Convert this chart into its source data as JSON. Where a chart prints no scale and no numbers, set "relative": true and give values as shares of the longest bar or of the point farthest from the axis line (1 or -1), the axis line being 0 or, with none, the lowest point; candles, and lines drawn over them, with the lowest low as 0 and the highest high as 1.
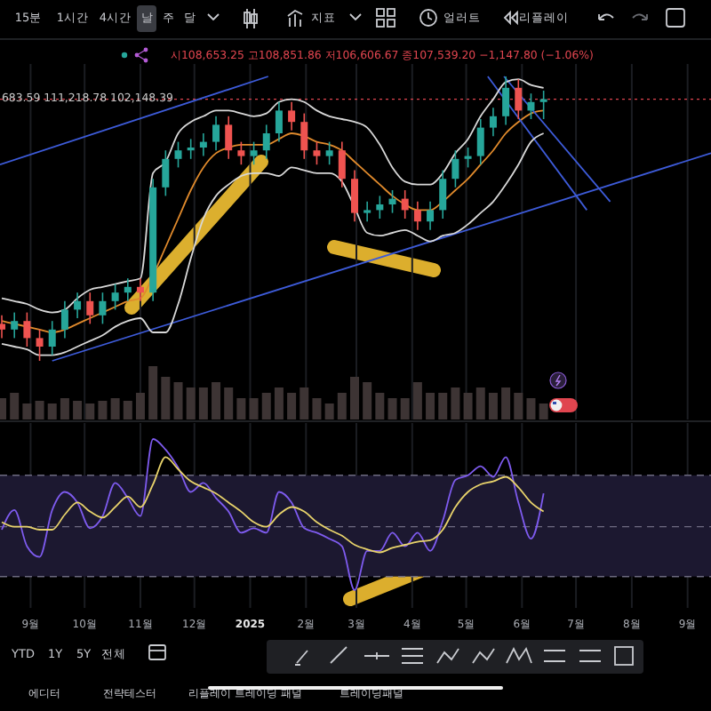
{
  "chart_data": [
    {
      "type": "candlestick",
      "relative": true,
      "tick_labels": false,
      "grid": "x",
      "xlim": [
        "2024-08-15",
        "2025-09-14"
      ],
      "xticks": [
        {
          "value": "2024-09-01",
          "label": null
        },
        {
          "value": "2024-10-01",
          "label": null
        },
        {
          "value": "2024-11-01",
          "label": null
        },
        {
          "value": "2024-12-01",
          "label": null
        },
        {
          "value": "2025-01-01",
          "label": null
        },
        {
          "value": "2025-02-01",
          "label": null
        },
        {
          "value": "2025-03-01",
          "label": null
        },
        {
          "value": "2025-04-01",
          "label": null
        },
        {
          "value": "2025-05-01",
          "label": null
        },
        {
          "value": "2025-06-01",
          "label": null
        },
        {
          "value": "2025-07-01",
          "label": null
        },
        {
          "value": "2025-08-01",
          "label": null
        },
        {
          "value": "2025-09-01",
          "label": null
        }
      ],
      "x": [
        "2024-08-16",
        "2024-08-23",
        "2024-08-30",
        "2024-09-06",
        "2024-09-13",
        "2024-09-20",
        "2024-09-27",
        "2024-10-04",
        "2024-10-11",
        "2024-10-18",
        "2024-10-25",
        "2024-11-01",
        "2024-11-08",
        "2024-11-15",
        "2024-11-22",
        "2024-11-29",
        "2024-12-06",
        "2024-12-13",
        "2024-12-20",
        "2024-12-27",
        "2025-01-03",
        "2025-01-10",
        "2025-01-17",
        "2025-01-24",
        "2025-01-31",
        "2025-02-07",
        "2025-02-14",
        "2025-02-21",
        "2025-02-28",
        "2025-03-07",
        "2025-03-14",
        "2025-03-21",
        "2025-03-28",
        "2025-04-04",
        "2025-04-11",
        "2025-04-18",
        "2025-04-25",
        "2025-05-02",
        "2025-05-09",
        "2025-05-16",
        "2025-05-23",
        "2025-05-30",
        "2025-06-06",
        "2025-06-13"
      ],
      "ohlc": [
        [
          0.13,
          0.16,
          0.08,
          0.11
        ],
        [
          0.11,
          0.17,
          0.08,
          0.14
        ],
        [
          0.14,
          0.17,
          0.05,
          0.08
        ],
        [
          0.08,
          0.11,
          0.0,
          0.05
        ],
        [
          0.05,
          0.14,
          0.02,
          0.11
        ],
        [
          0.11,
          0.21,
          0.08,
          0.18
        ],
        [
          0.18,
          0.24,
          0.15,
          0.21
        ],
        [
          0.21,
          0.24,
          0.13,
          0.16
        ],
        [
          0.16,
          0.24,
          0.13,
          0.21
        ],
        [
          0.21,
          0.27,
          0.18,
          0.24
        ],
        [
          0.24,
          0.29,
          0.21,
          0.26
        ],
        [
          0.26,
          0.29,
          0.21,
          0.24
        ],
        [
          0.24,
          0.64,
          0.21,
          0.61
        ],
        [
          0.61,
          0.74,
          0.58,
          0.71
        ],
        [
          0.71,
          0.77,
          0.68,
          0.74
        ],
        [
          0.74,
          0.78,
          0.71,
          0.75
        ],
        [
          0.75,
          0.8,
          0.72,
          0.77
        ],
        [
          0.77,
          0.86,
          0.74,
          0.83
        ],
        [
          0.83,
          0.86,
          0.71,
          0.74
        ],
        [
          0.74,
          0.77,
          0.69,
          0.72
        ],
        [
          0.72,
          0.77,
          0.69,
          0.74
        ],
        [
          0.74,
          0.83,
          0.71,
          0.8
        ],
        [
          0.8,
          0.91,
          0.77,
          0.88
        ],
        [
          0.88,
          0.91,
          0.81,
          0.84
        ],
        [
          0.84,
          0.87,
          0.71,
          0.74
        ],
        [
          0.74,
          0.77,
          0.69,
          0.72
        ],
        [
          0.72,
          0.77,
          0.69,
          0.74
        ],
        [
          0.74,
          0.77,
          0.61,
          0.64
        ],
        [
          0.64,
          0.67,
          0.49,
          0.52
        ],
        [
          0.52,
          0.56,
          0.49,
          0.53
        ],
        [
          0.53,
          0.58,
          0.5,
          0.55
        ],
        [
          0.55,
          0.6,
          0.52,
          0.57
        ],
        [
          0.57,
          0.6,
          0.5,
          0.53
        ],
        [
          0.53,
          0.56,
          0.46,
          0.49
        ],
        [
          0.49,
          0.56,
          0.46,
          0.53
        ],
        [
          0.53,
          0.67,
          0.5,
          0.64
        ],
        [
          0.64,
          0.74,
          0.61,
          0.71
        ],
        [
          0.71,
          0.75,
          0.68,
          0.72
        ],
        [
          0.72,
          0.85,
          0.69,
          0.82
        ],
        [
          0.82,
          0.89,
          0.79,
          0.86
        ],
        [
          0.86,
          1.0,
          0.83,
          0.96
        ],
        [
          0.96,
          0.99,
          0.85,
          0.88
        ],
        [
          0.88,
          0.94,
          0.85,
          0.91
        ],
        [
          0.91,
          0.95,
          0.85,
          0.92
        ]
      ],
      "series": [
        {
          "type": "line",
          "color": "#e08a2c",
          "values": [
            0.14,
            0.13,
            0.12,
            0.11,
            0.1,
            0.11,
            0.13,
            0.15,
            0.17,
            0.19,
            0.21,
            0.22,
            0.3,
            0.4,
            0.5,
            0.6,
            0.68,
            0.73,
            0.75,
            0.76,
            0.76,
            0.76,
            0.78,
            0.8,
            0.79,
            0.77,
            0.76,
            0.74,
            0.7,
            0.66,
            0.62,
            0.58,
            0.55,
            0.53,
            0.53,
            0.56,
            0.6,
            0.64,
            0.69,
            0.74,
            0.8,
            0.84,
            0.87,
            0.88
          ]
        },
        {
          "type": "line",
          "color": "#3d5bd9",
          "x": [
            "2024-08-15",
            "2025-01-11"
          ],
          "values": [
            0.69,
            1.0
          ]
        },
        {
          "type": "line",
          "color": "#3d5bd9",
          "x": [
            "2024-09-13",
            "2025-09-14"
          ],
          "values": [
            0.0,
            0.73
          ]
        },
        {
          "type": "line",
          "color": "#3d5bd9",
          "x": [
            "2025-05-13",
            "2025-07-07"
          ],
          "values": [
            1.0,
            0.53
          ]
        },
        {
          "type": "line",
          "color": "#3d5bd9",
          "x": [
            "2025-05-22",
            "2025-07-20"
          ],
          "values": [
            1.0,
            0.56
          ]
        },
        {
          "type": "line",
          "color": "#d8d8d8",
          "values": [
            0.22,
            0.21,
            0.2,
            0.18,
            0.17,
            0.18,
            0.22,
            0.25,
            0.26,
            0.27,
            0.28,
            0.29,
            0.66,
            0.7,
            0.8,
            0.84,
            0.86,
            0.88,
            0.88,
            0.87,
            0.86,
            0.87,
            0.91,
            0.92,
            0.91,
            0.88,
            0.86,
            0.85,
            0.84,
            0.82,
            0.76,
            0.68,
            0.63,
            0.62,
            0.62,
            0.66,
            0.73,
            0.78,
            0.86,
            0.92,
            0.98,
            0.99,
            0.97,
            0.96
          ]
        },
        {
          "type": "line",
          "color": "#d8d8d8",
          "values": [
            0.06,
            0.05,
            0.04,
            0.02,
            0.02,
            0.03,
            0.05,
            0.07,
            0.09,
            0.12,
            0.14,
            0.15,
            0.1,
            0.1,
            0.2,
            0.36,
            0.5,
            0.58,
            0.62,
            0.65,
            0.66,
            0.66,
            0.65,
            0.68,
            0.67,
            0.66,
            0.66,
            0.63,
            0.54,
            0.45,
            0.44,
            0.45,
            0.46,
            0.44,
            0.42,
            0.44,
            0.45,
            0.48,
            0.52,
            0.56,
            0.62,
            0.69,
            0.77,
            0.8
          ]
        }
      ],
      "ref_lines": [
        {
          "axis": "y",
          "value": 0.92,
          "color": "#e0454f",
          "line_style": "dotted"
        }
      ],
      "annotations": [
        "시108,653.25 고108,851.86 저106,606.67 종107,539.20 −1,147.80 (−1.06%)",
        "683.59 111,218.78 102,148.39"
      ]
    },
    {
      "type": "bar",
      "relative": true,
      "tick_labels": false,
      "color": "#3d3434",
      "xlim": [
        "2024-08-15",
        "2025-09-14"
      ],
      "x": [
        "2024-08-16",
        "2024-08-23",
        "2024-08-30",
        "2024-09-06",
        "2024-09-13",
        "2024-09-20",
        "2024-09-27",
        "2024-10-04",
        "2024-10-11",
        "2024-10-18",
        "2024-10-25",
        "2024-11-01",
        "2024-11-08",
        "2024-11-15",
        "2024-11-22",
        "2024-11-29",
        "2024-12-06",
        "2024-12-13",
        "2024-12-20",
        "2024-12-27",
        "2025-01-03",
        "2025-01-10",
        "2025-01-17",
        "2025-01-24",
        "2025-01-31",
        "2025-02-07",
        "2025-02-14",
        "2025-02-21",
        "2025-02-28",
        "2025-03-07",
        "2025-03-14",
        "2025-03-21",
        "2025-03-28",
        "2025-04-04",
        "2025-04-11",
        "2025-04-18",
        "2025-04-25",
        "2025-05-02",
        "2025-05-09",
        "2025-05-16",
        "2025-05-23",
        "2025-05-30",
        "2025-06-06",
        "2025-06-13"
      ],
      "values": [
        0.4,
        0.5,
        0.3,
        0.35,
        0.3,
        0.4,
        0.35,
        0.3,
        0.35,
        0.4,
        0.35,
        0.5,
        1.0,
        0.8,
        0.7,
        0.6,
        0.6,
        0.7,
        0.6,
        0.4,
        0.4,
        0.5,
        0.6,
        0.5,
        0.6,
        0.4,
        0.3,
        0.5,
        0.8,
        0.7,
        0.5,
        0.4,
        0.4,
        0.7,
        0.5,
        0.5,
        0.6,
        0.5,
        0.6,
        0.5,
        0.6,
        0.5,
        0.4,
        0.3
      ]
    },
    {
      "type": "line",
      "relative": true,
      "tick_labels": "x",
      "grid": "x",
      "xlim": [
        "2024-08-15",
        "2025-09-14"
      ],
      "xticks": [
        {
          "value": "2024-09-01",
          "label": "9월"
        },
        {
          "value": "2024-10-01",
          "label": "10월"
        },
        {
          "value": "2024-11-01",
          "label": "11월"
        },
        {
          "value": "2024-12-01",
          "label": "12월"
        },
        {
          "value": "2025-01-01",
          "label": "2025"
        },
        {
          "value": "2025-02-01",
          "label": "2월"
        },
        {
          "value": "2025-03-01",
          "label": "3월"
        },
        {
          "value": "2025-04-01",
          "label": "4월"
        },
        {
          "value": "2025-05-01",
          "label": "5월"
        },
        {
          "value": "2025-06-01",
          "label": "6월"
        },
        {
          "value": "2025-07-01",
          "label": "7월"
        },
        {
          "value": "2025-08-01",
          "label": "8월"
        },
        {
          "value": "2025-09-01",
          "label": "9월"
        }
      ],
      "x": [
        "2024-08-16",
        "2024-08-23",
        "2024-08-30",
        "2024-09-06",
        "2024-09-13",
        "2024-09-20",
        "2024-09-27",
        "2024-10-04",
        "2024-10-11",
        "2024-10-18",
        "2024-10-25",
        "2024-11-01",
        "2024-11-08",
        "2024-11-15",
        "2024-11-22",
        "2024-11-29",
        "2024-12-06",
        "2024-12-13",
        "2024-12-20",
        "2024-12-27",
        "2025-01-03",
        "2025-01-10",
        "2025-01-17",
        "2025-01-24",
        "2025-01-31",
        "2025-02-07",
        "2025-02-14",
        "2025-02-21",
        "2025-02-28",
        "2025-03-07",
        "2025-03-14",
        "2025-03-21",
        "2025-03-28",
        "2025-04-04",
        "2025-04-11",
        "2025-04-18",
        "2025-04-25",
        "2025-05-02",
        "2025-05-09",
        "2025-05-16",
        "2025-05-23",
        "2025-05-30",
        "2025-06-06",
        "2025-06-13"
      ],
      "series": [
        {
          "color": "#7e5bef",
          "values": [
            0.4,
            0.53,
            0.29,
            0.22,
            0.53,
            0.65,
            0.58,
            0.41,
            0.49,
            0.71,
            0.61,
            0.49,
            1.0,
            0.93,
            0.81,
            0.65,
            0.71,
            0.61,
            0.52,
            0.38,
            0.41,
            0.38,
            0.65,
            0.58,
            0.41,
            0.38,
            0.34,
            0.29,
            0.0,
            0.26,
            0.26,
            0.38,
            0.29,
            0.38,
            0.26,
            0.46,
            0.73,
            0.76,
            0.82,
            0.75,
            0.88,
            0.58,
            0.34,
            0.64
          ]
        },
        {
          "color": "#e8d36b",
          "values": [
            0.45,
            0.42,
            0.42,
            0.4,
            0.4,
            0.5,
            0.58,
            0.52,
            0.48,
            0.55,
            0.62,
            0.55,
            0.7,
            0.88,
            0.8,
            0.72,
            0.68,
            0.64,
            0.58,
            0.52,
            0.45,
            0.42,
            0.5,
            0.55,
            0.52,
            0.45,
            0.4,
            0.36,
            0.3,
            0.27,
            0.25,
            0.28,
            0.3,
            0.32,
            0.33,
            0.4,
            0.55,
            0.65,
            0.7,
            0.72,
            0.75,
            0.68,
            0.58,
            0.52
          ]
        }
      ],
      "bands": [
        {
          "axis": "y",
          "from": 0.09,
          "to": 0.76,
          "color": "#1c1830"
        }
      ],
      "ref_lines": [
        {
          "axis": "y",
          "value": 0.76,
          "color": "#6d6a80",
          "line_style": "dashed"
        },
        {
          "axis": "y",
          "value": 0.42,
          "color": "#6d6a80",
          "line_style": "dashed"
        },
        {
          "axis": "y",
          "value": 0.09,
          "color": "#6d6a80",
          "line_style": "dashed"
        }
      ]
    },
    {
      "type": "other",
      "annotations": [
        "15분",
        "1시간",
        "4시간",
        "날",
        "주",
        "달",
        "지표",
        "얼러트",
        "리플레이",
        "YTD",
        "1Y",
        "5Y",
        "전체",
        "에디터",
        "전략테스터",
        "리플레이 트레이딩 패널",
        "트레이딩패널"
      ]
    }
  ]
}
